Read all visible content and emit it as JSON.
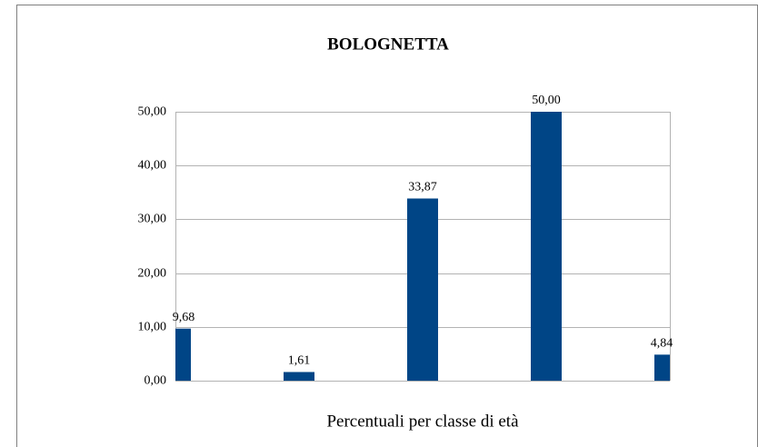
{
  "chart_data": {
    "type": "bar",
    "title": "BOLOGNETTA",
    "x_label": "Percentuali per classe di età",
    "categories": [
      null,
      null,
      null,
      null,
      null
    ],
    "values": [
      9.68,
      1.61,
      33.87,
      50.0,
      4.84
    ],
    "value_labels": [
      "9,68",
      "1,61",
      "33,87",
      "50,00",
      "4,84"
    ],
    "color": "#004586",
    "ylim": [
      0,
      50
    ],
    "yticks": [
      {
        "value": 0,
        "label": "0,00"
      },
      {
        "value": 10,
        "label": "10,00"
      },
      {
        "value": 20,
        "label": "20,00"
      },
      {
        "value": 30,
        "label": "30,00"
      },
      {
        "value": 40,
        "label": "40,00"
      },
      {
        "value": 50,
        "label": "50,00"
      }
    ],
    "grid": true
  }
}
